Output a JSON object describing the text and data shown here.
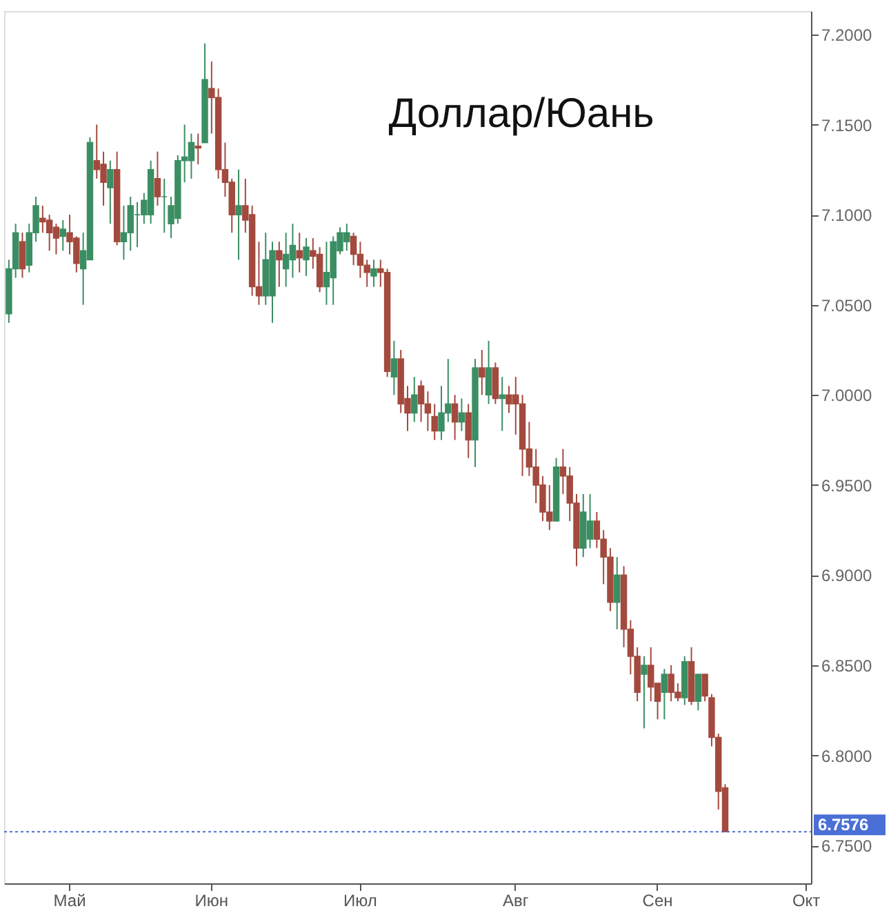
{
  "chart_data": {
    "type": "candlestick",
    "title": "Доллар/Юань",
    "colors": [
      "#3b8e63",
      "#3b8e63",
      "#a34a3e",
      "#3b8e63",
      "#3b8e63",
      "#a34a3e",
      "#a34a3e",
      "#a34a3e",
      "#3b8e63",
      "#a34a3e",
      "#a34a3e",
      "#3b8e63",
      "#3b8e63",
      "#a34a3e",
      "#a34a3e",
      "#3b8e63",
      "#a34a3e",
      "#3b8e63",
      "#3b8e63",
      "#3b8e63",
      "#3b8e63",
      "#3b8e63",
      "#a34a3e",
      "#3b8e63",
      "#3b8e63",
      "#3b8e63",
      "#3b8e63",
      "#3b8e63",
      "#a34a3e",
      "#3b8e63",
      "#a34a3e",
      "#a34a3e",
      "#a34a3e",
      "#a34a3e",
      "#3b8e63",
      "#a34a3e",
      "#a34a3e",
      "#a34a3e",
      "#3b8e63",
      "#3b8e63",
      "#a34a3e",
      "#3b8e63",
      "#3b8e63",
      "#a34a3e",
      "#3b8e63",
      "#a34a3e",
      "#a34a3e",
      "#3b8e63",
      "#3b8e63",
      "#3b8e63",
      "#3b8e63",
      "#a34a3e",
      "#a34a3e",
      "#a34a3e",
      "#3b8e63",
      "#a34a3e",
      "#a34a3e",
      "#3b8e63",
      "#a34a3e",
      "#a34a3e",
      "#3b8e63",
      "#a34a3e",
      "#a34a3e",
      "#a34a3e",
      "#3b8e63",
      "#3b8e63",
      "#a34a3e",
      "#3b8e63",
      "#a34a3e",
      "#3b8e63",
      "#a34a3e",
      "#3b8e63",
      "#a34a3e",
      "#3b8e63",
      "#a34a3e",
      "#a34a3e",
      "#a34a3e",
      "#a34a3e",
      "#a34a3e",
      "#a34a3e",
      "#a34a3e",
      "#3b8e63",
      "#a34a3e",
      "#a34a3e",
      "#a34a3e",
      "#3b8e63",
      "#3b8e63",
      "#a34a3e",
      "#a34a3e",
      "#a34a3e",
      "#3b8e63",
      "#a34a3e",
      "#a34a3e",
      "#a34a3e",
      "#3b8e63",
      "#a34a3e",
      "#a34a3e",
      "#3b8e63",
      "#a34a3e",
      "#a34a3e",
      "#3b8e63",
      "#a34a3e",
      "#3b8e63",
      "#a34a3e",
      "#a34a3e",
      "#a34a3e",
      "#a34a3e",
      null,
      null,
      null,
      null,
      null,
      null,
      null,
      null,
      null,
      null,
      null,
      null
    ],
    "categories": [
      null,
      null,
      null,
      null,
      null,
      null,
      null,
      null,
      null,
      "Май",
      null,
      null,
      null,
      null,
      null,
      null,
      null,
      null,
      null,
      null,
      null,
      null,
      null,
      null,
      null,
      null,
      null,
      null,
      null,
      null,
      "Июн",
      null,
      null,
      null,
      null,
      null,
      null,
      null,
      null,
      null,
      null,
      null,
      null,
      null,
      null,
      null,
      null,
      null,
      null,
      null,
      null,
      null,
      "Июл",
      null,
      null,
      null,
      null,
      null,
      null,
      null,
      null,
      null,
      null,
      null,
      null,
      null,
      null,
      null,
      null,
      null,
      null,
      null,
      null,
      null,
      null,
      "Авг",
      null,
      null,
      null,
      null,
      null,
      null,
      null,
      null,
      null,
      null,
      null,
      null,
      null,
      null,
      null,
      null,
      null,
      null,
      null,
      null,
      "Сен",
      null,
      null,
      null,
      null,
      null,
      null,
      null,
      null,
      null,
      null,
      null,
      null,
      null,
      null,
      null,
      null,
      null,
      null,
      null,
      null,
      null,
      "Окт"
    ],
    "ylim": [
      6.729,
      7.213
    ],
    "yticks": [
      {
        "value": 6.75,
        "label": "6.7500"
      },
      {
        "value": 6.8,
        "label": "6.8000"
      },
      {
        "value": 6.85,
        "label": "6.8500"
      },
      {
        "value": 6.9,
        "label": "6.9000"
      },
      {
        "value": 6.95,
        "label": "6.9500"
      },
      {
        "value": 7.0,
        "label": "7.0000"
      },
      {
        "value": 7.05,
        "label": "7.0500"
      },
      {
        "value": 7.1,
        "label": "7.1000"
      },
      {
        "value": 7.15,
        "label": "7.1500"
      },
      {
        "value": 7.2,
        "label": "7.2000"
      }
    ],
    "grid": false,
    "ref_lines": [
      {
        "axis": "y",
        "value": 6.7576,
        "label": "6.7576",
        "color": "#4a6fd6",
        "line_style": "dotted"
      }
    ],
    "ohlc": [
      [
        7.045,
        7.075,
        7.04,
        7.07
      ],
      [
        7.07,
        7.095,
        7.065,
        7.09
      ],
      [
        7.085,
        7.09,
        7.065,
        7.07
      ],
      [
        7.072,
        7.095,
        7.068,
        7.09
      ],
      [
        7.09,
        7.11,
        7.085,
        7.105
      ],
      [
        7.098,
        7.105,
        7.09,
        7.096
      ],
      [
        7.097,
        7.1,
        7.08,
        7.09
      ],
      [
        7.093,
        7.095,
        7.078,
        7.087
      ],
      [
        7.088,
        7.097,
        7.08,
        7.092
      ],
      [
        7.09,
        7.1,
        7.078,
        7.085
      ],
      [
        7.087,
        7.088,
        7.068,
        7.073
      ],
      [
        7.07,
        7.09,
        7.05,
        7.08
      ],
      [
        7.075,
        7.143,
        7.075,
        7.14
      ],
      [
        7.13,
        7.15,
        7.12,
        7.125
      ],
      [
        7.128,
        7.135,
        7.105,
        7.118
      ],
      [
        7.115,
        7.13,
        7.095,
        7.125
      ],
      [
        7.125,
        7.135,
        7.083,
        7.085
      ],
      [
        7.085,
        7.105,
        7.075,
        7.09
      ],
      [
        7.09,
        7.11,
        7.08,
        7.105
      ],
      [
        7.1,
        7.107,
        7.082,
        7.1
      ],
      [
        7.1,
        7.112,
        7.095,
        7.108
      ],
      [
        7.1,
        7.13,
        7.095,
        7.125
      ],
      [
        7.12,
        7.135,
        7.105,
        7.11
      ],
      [
        7.11,
        7.12,
        7.09,
        7.11
      ],
      [
        7.095,
        7.11,
        7.087,
        7.105
      ],
      [
        7.098,
        7.133,
        7.095,
        7.13
      ],
      [
        7.13,
        7.15,
        7.118,
        7.132
      ],
      [
        7.13,
        7.145,
        7.12,
        7.14
      ],
      [
        7.138,
        7.145,
        7.128,
        7.137
      ],
      [
        7.14,
        7.195,
        7.14,
        7.175
      ],
      [
        7.17,
        7.185,
        7.145,
        7.165
      ],
      [
        7.165,
        7.17,
        7.12,
        7.125
      ],
      [
        7.125,
        7.14,
        7.11,
        7.118
      ],
      [
        7.118,
        7.12,
        7.09,
        7.1
      ],
      [
        7.1,
        7.125,
        7.075,
        7.105
      ],
      [
        7.105,
        7.12,
        7.09,
        7.097
      ],
      [
        7.1,
        7.105,
        7.055,
        7.06
      ],
      [
        7.06,
        7.085,
        7.05,
        7.055
      ],
      [
        7.055,
        7.09,
        7.05,
        7.075
      ],
      [
        7.055,
        7.085,
        7.04,
        7.08
      ],
      [
        7.08,
        7.085,
        7.06,
        7.075
      ],
      [
        7.07,
        7.09,
        7.06,
        7.078
      ],
      [
        7.075,
        7.095,
        7.065,
        7.083
      ],
      [
        7.08,
        7.09,
        7.068,
        7.076
      ],
      [
        7.075,
        7.087,
        7.066,
        7.082
      ],
      [
        7.08,
        7.087,
        7.07,
        7.077
      ],
      [
        7.078,
        7.082,
        7.057,
        7.06
      ],
      [
        7.06,
        7.085,
        7.05,
        7.068
      ],
      [
        7.065,
        7.088,
        7.05,
        7.085
      ],
      [
        7.08,
        7.093,
        7.078,
        7.09
      ],
      [
        7.085,
        7.095,
        7.08,
        7.09
      ],
      [
        7.088,
        7.09,
        7.072,
        7.078
      ],
      [
        7.078,
        7.085,
        7.065,
        7.072
      ],
      [
        7.072,
        7.075,
        7.06,
        7.068
      ],
      [
        7.066,
        7.075,
        7.06,
        7.07
      ],
      [
        7.07,
        7.075,
        7.06,
        7.068
      ],
      [
        7.068,
        7.07,
        7.01,
        7.013
      ],
      [
        7.01,
        7.03,
        7.0,
        7.02
      ],
      [
        7.02,
        7.025,
        6.99,
        6.995
      ],
      [
        6.998,
        7.005,
        6.98,
        6.99
      ],
      [
        6.99,
        7.01,
        6.985,
        7.0
      ],
      [
        7.005,
        7.008,
        6.985,
        6.995
      ],
      [
        6.995,
        7.002,
        6.98,
        6.99
      ],
      [
        6.988,
        6.995,
        6.975,
        6.98
      ],
      [
        6.98,
        7.005,
        6.975,
        6.99
      ],
      [
        6.99,
        7.02,
        6.985,
        6.995
      ],
      [
        6.995,
        7.0,
        6.975,
        6.985
      ],
      [
        6.985,
        6.998,
        6.98,
        6.99
      ],
      [
        6.99,
        6.995,
        6.965,
        6.975
      ],
      [
        6.975,
        7.02,
        6.96,
        7.015
      ],
      [
        7.015,
        7.025,
        7.0,
        7.01
      ],
      [
        7.0,
        7.03,
        6.995,
        7.015
      ],
      [
        7.015,
        7.018,
        6.995,
        6.998
      ],
      [
        6.998,
        7.01,
        6.98,
        7.0
      ],
      [
        7.0,
        7.005,
        6.99,
        6.995
      ],
      [
        7.0,
        7.01,
        6.978,
        6.995
      ],
      [
        6.995,
        7.0,
        6.955,
        6.97
      ],
      [
        6.97,
        6.985,
        6.955,
        6.96
      ],
      [
        6.96,
        6.97,
        6.94,
        6.95
      ],
      [
        6.95,
        6.955,
        6.93,
        6.935
      ],
      [
        6.935,
        6.95,
        6.925,
        6.93
      ],
      [
        6.93,
        6.965,
        6.93,
        6.96
      ],
      [
        6.96,
        6.97,
        6.945,
        6.955
      ],
      [
        6.955,
        6.96,
        6.93,
        6.94
      ],
      [
        6.94,
        6.945,
        6.905,
        6.915
      ],
      [
        6.915,
        6.945,
        6.91,
        6.935
      ],
      [
        6.92,
        6.945,
        6.915,
        6.93
      ],
      [
        6.93,
        6.935,
        6.915,
        6.92
      ],
      [
        6.92,
        6.925,
        6.895,
        6.91
      ],
      [
        6.91,
        6.915,
        6.88,
        6.885
      ],
      [
        6.885,
        6.91,
        6.87,
        6.9
      ],
      [
        6.9,
        6.905,
        6.86,
        6.87
      ],
      [
        6.87,
        6.875,
        6.845,
        6.855
      ],
      [
        6.855,
        6.86,
        6.83,
        6.835
      ],
      [
        6.845,
        6.855,
        6.815,
        6.85
      ],
      [
        6.85,
        6.86,
        6.83,
        6.838
      ],
      [
        6.84,
        6.84,
        6.82,
        6.83
      ],
      [
        6.835,
        6.848,
        6.82,
        6.845
      ],
      [
        6.845,
        6.85,
        6.83,
        6.835
      ],
      [
        6.835,
        6.84,
        6.83,
        6.832
      ],
      [
        6.832,
        6.855,
        6.828,
        6.852
      ],
      [
        6.852,
        6.86,
        6.828,
        6.83
      ],
      [
        6.83,
        6.845,
        6.825,
        6.845
      ],
      [
        6.845,
        6.845,
        6.83,
        6.833
      ],
      [
        6.832,
        6.834,
        6.805,
        6.81
      ],
      [
        6.81,
        6.812,
        6.77,
        6.78
      ],
      [
        6.782,
        6.784,
        6.7576,
        6.7576
      ],
      null,
      null,
      null,
      null,
      null,
      null,
      null,
      null,
      null,
      null,
      null,
      null
    ]
  }
}
